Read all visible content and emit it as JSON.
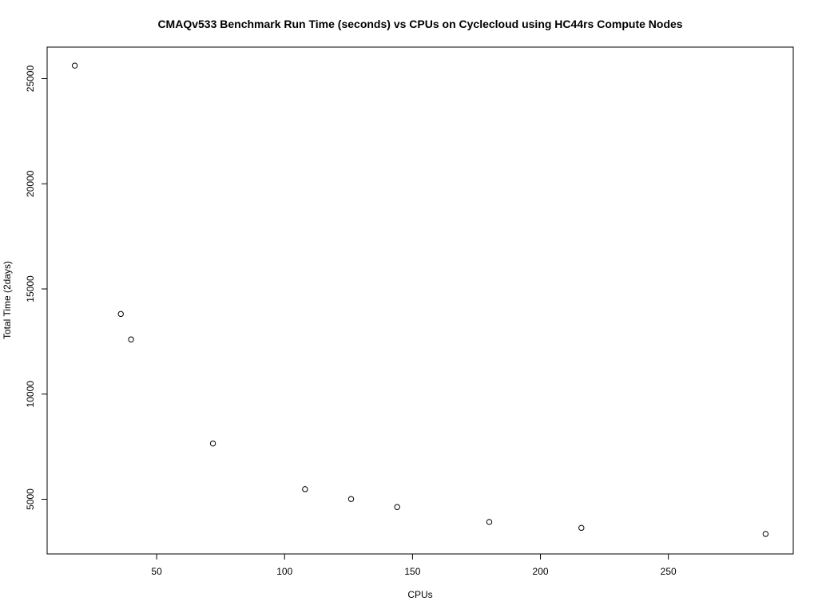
{
  "chart_data": {
    "type": "scatter",
    "title": "CMAQv533 Benchmark Run Time (seconds) vs CPUs on Cyclecloud using HC44rs Compute Nodes",
    "xlabel": "CPUs",
    "ylabel": "Total Time (2days)",
    "xlim": [
      7.2,
      298.8
    ],
    "ylim": [
      2400,
      26500
    ],
    "x_ticks": [
      50,
      100,
      150,
      200,
      250
    ],
    "x_tick_labels": [
      "50",
      "100",
      "150",
      "200",
      "250"
    ],
    "y_ticks": [
      5000,
      10000,
      15000,
      20000,
      25000
    ],
    "y_tick_labels": [
      "5000",
      "10000",
      "15000",
      "20000",
      "25000"
    ],
    "grid": false,
    "legend": "none",
    "marker": "open-circle",
    "colors": {
      "points": "#000000",
      "axes": "#000000",
      "background": "#ffffff"
    },
    "points": [
      {
        "x": 18,
        "y": 25620
      },
      {
        "x": 36,
        "y": 13810
      },
      {
        "x": 40,
        "y": 12600
      },
      {
        "x": 72,
        "y": 7650
      },
      {
        "x": 108,
        "y": 5480
      },
      {
        "x": 126,
        "y": 5010
      },
      {
        "x": 144,
        "y": 4630
      },
      {
        "x": 180,
        "y": 3920
      },
      {
        "x": 216,
        "y": 3640
      },
      {
        "x": 288,
        "y": 3350
      }
    ]
  }
}
